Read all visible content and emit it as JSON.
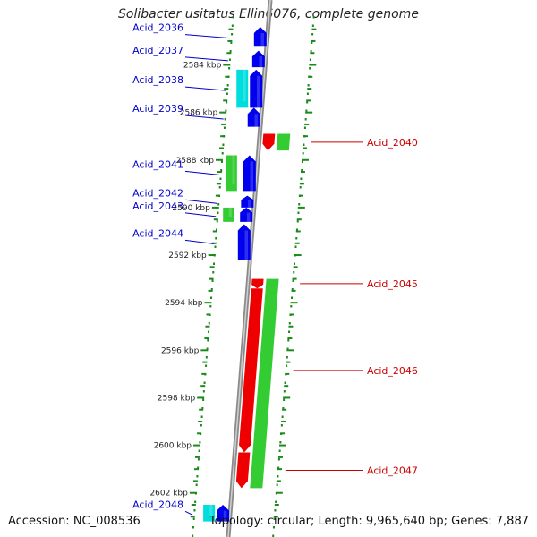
{
  "title": "Solibacter usitatus Ellin6076, complete genome",
  "accession": "Accession: NC_008536",
  "summary": "Topology: circular; Length: 9,965,640 bp; Genes: 7,887",
  "colors": {
    "forward_cds": "#0000ee",
    "reverse_cds": "#ee0000",
    "rna": "#00dddd",
    "orf": "#33cc33",
    "backbone": "#8a8a8a",
    "ticks": "#1a8a1a",
    "left_label": "#0000cc",
    "right_label": "#cc0000"
  },
  "scale": {
    "start_kbp": 2582,
    "end_kbp": 2603.2,
    "labels": [
      {
        "kbp": 2584,
        "text": "2584 kbp"
      },
      {
        "kbp": 2586,
        "text": "2586 kbp"
      },
      {
        "kbp": 2588,
        "text": "2588 kbp"
      },
      {
        "kbp": 2590,
        "text": "2590 kbp"
      },
      {
        "kbp": 2592,
        "text": "2592 kbp"
      },
      {
        "kbp": 2594,
        "text": "2594 kbp"
      },
      {
        "kbp": 2596,
        "text": "2596 kbp"
      },
      {
        "kbp": 2598,
        "text": "2598 kbp"
      },
      {
        "kbp": 2600,
        "text": "2600 kbp"
      },
      {
        "kbp": 2602,
        "text": "2602 kbp"
      }
    ]
  },
  "genes": [
    {
      "name": "Acid_2036",
      "side": "left",
      "lane": "forward",
      "start": 2582.4,
      "end": 2583.2
    },
    {
      "name": "Acid_2037",
      "side": "left",
      "lane": "forward",
      "start": 2583.4,
      "end": 2584.1
    },
    {
      "name": "Acid_2038",
      "side": "left",
      "lane": "forward",
      "start": 2584.2,
      "end": 2585.8
    },
    {
      "name": "Acid_2039",
      "side": "left",
      "lane": "forward",
      "start": 2585.8,
      "end": 2586.6
    },
    {
      "name": "Acid_2040",
      "side": "right",
      "lane": "reverse",
      "start": 2586.9,
      "end": 2587.6
    },
    {
      "name": "Acid_2041",
      "side": "left",
      "lane": "forward",
      "start": 2587.8,
      "end": 2589.3
    },
    {
      "name": "Acid_2042",
      "side": "left",
      "lane": "forward",
      "start": 2589.5,
      "end": 2590.0
    },
    {
      "name": "Acid_2043",
      "side": "left",
      "lane": "forward",
      "start": 2590.0,
      "end": 2590.6
    },
    {
      "name": "Acid_2044",
      "side": "left",
      "lane": "forward",
      "start": 2590.7,
      "end": 2592.2
    },
    {
      "name": "Acid_2045",
      "side": "right",
      "lane": "reverse",
      "start": 2593.0,
      "end": 2593.4
    },
    {
      "name": "Acid_2046",
      "side": "right",
      "lane": "reverse",
      "start": 2593.4,
      "end": 2600.3
    },
    {
      "name": "Acid_2047",
      "side": "right",
      "lane": "reverse",
      "start": 2600.3,
      "end": 2601.8
    },
    {
      "name": "Acid_2048",
      "side": "left",
      "lane": "forward",
      "start": 2602.5,
      "end": 2603.2
    }
  ],
  "rna_features": [
    {
      "start": 2584.2,
      "end": 2585.8
    },
    {
      "start": 2602.5,
      "end": 2603.2
    }
  ],
  "orfs": [
    {
      "strand": "left",
      "start": 2587.8,
      "end": 2589.3
    },
    {
      "strand": "left",
      "start": 2590.0,
      "end": 2590.6
    },
    {
      "strand": "right",
      "start": 2586.9,
      "end": 2587.6
    },
    {
      "strand": "right",
      "start": 2593.0,
      "end": 2601.8
    }
  ]
}
